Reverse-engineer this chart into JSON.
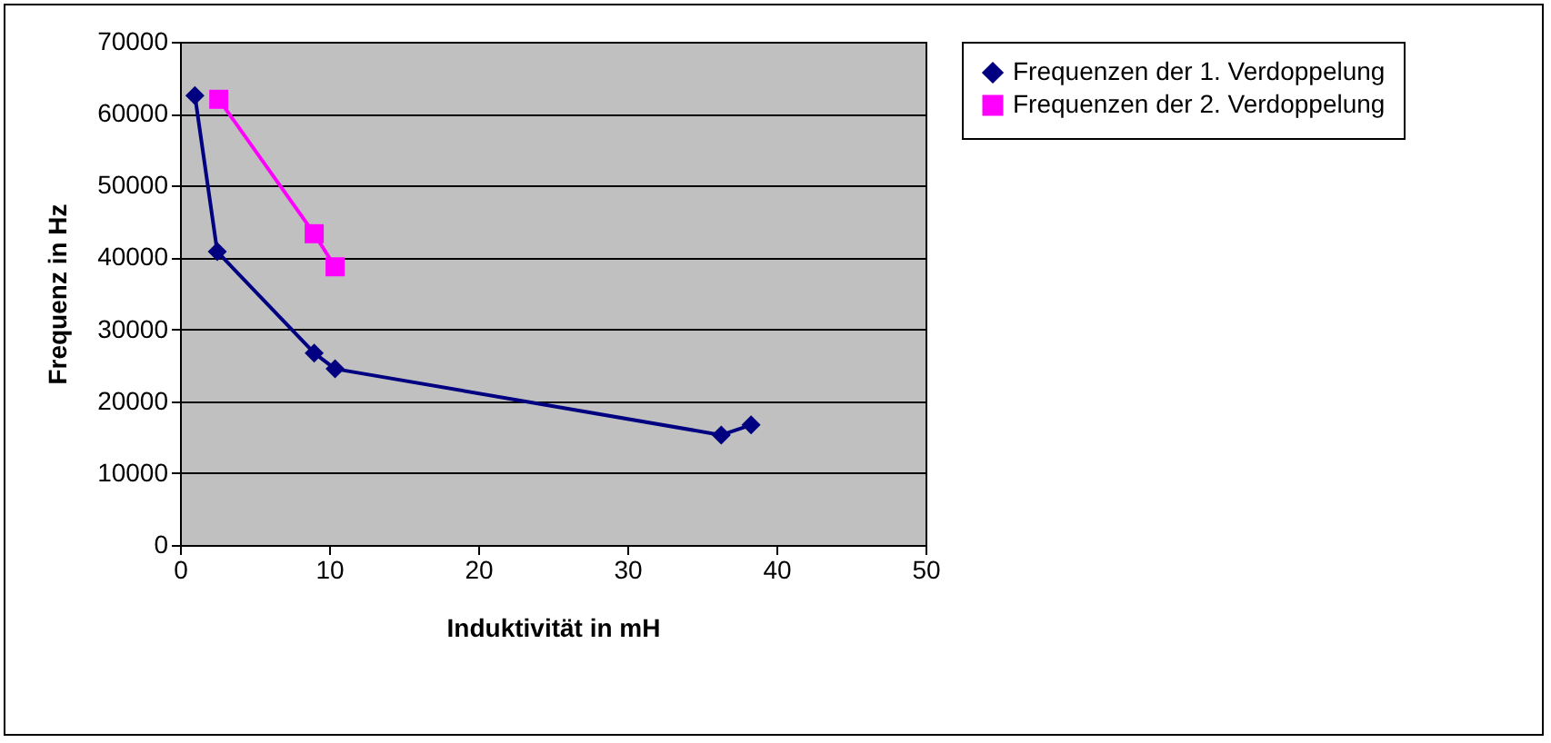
{
  "chart_data": {
    "type": "line",
    "xlabel": "Induktivität in mH",
    "ylabel": "Frequenz in Hz",
    "xlim": [
      0,
      50
    ],
    "xticks": [
      0,
      10,
      20,
      30,
      40,
      50
    ],
    "ylim": [
      0,
      70000
    ],
    "yticks": [
      0,
      10000,
      20000,
      30000,
      40000,
      50000,
      60000,
      70000
    ],
    "grid": "y",
    "legend": "right",
    "series": [
      {
        "name": "Frequenzen der 1. Verdoppelung",
        "color": "#000080",
        "marker": "diamond",
        "x": [
          1,
          2.5,
          9,
          10.4,
          36.3,
          38.3
        ],
        "values": [
          62500,
          40800,
          26700,
          24500,
          15300,
          16700
        ]
      },
      {
        "name": "Frequenzen der 2. Verdoppelung",
        "color": "#ff00ff",
        "marker": "square",
        "x": [
          2.6,
          9,
          10.4
        ],
        "values": [
          62000,
          43300,
          38700
        ]
      }
    ]
  }
}
